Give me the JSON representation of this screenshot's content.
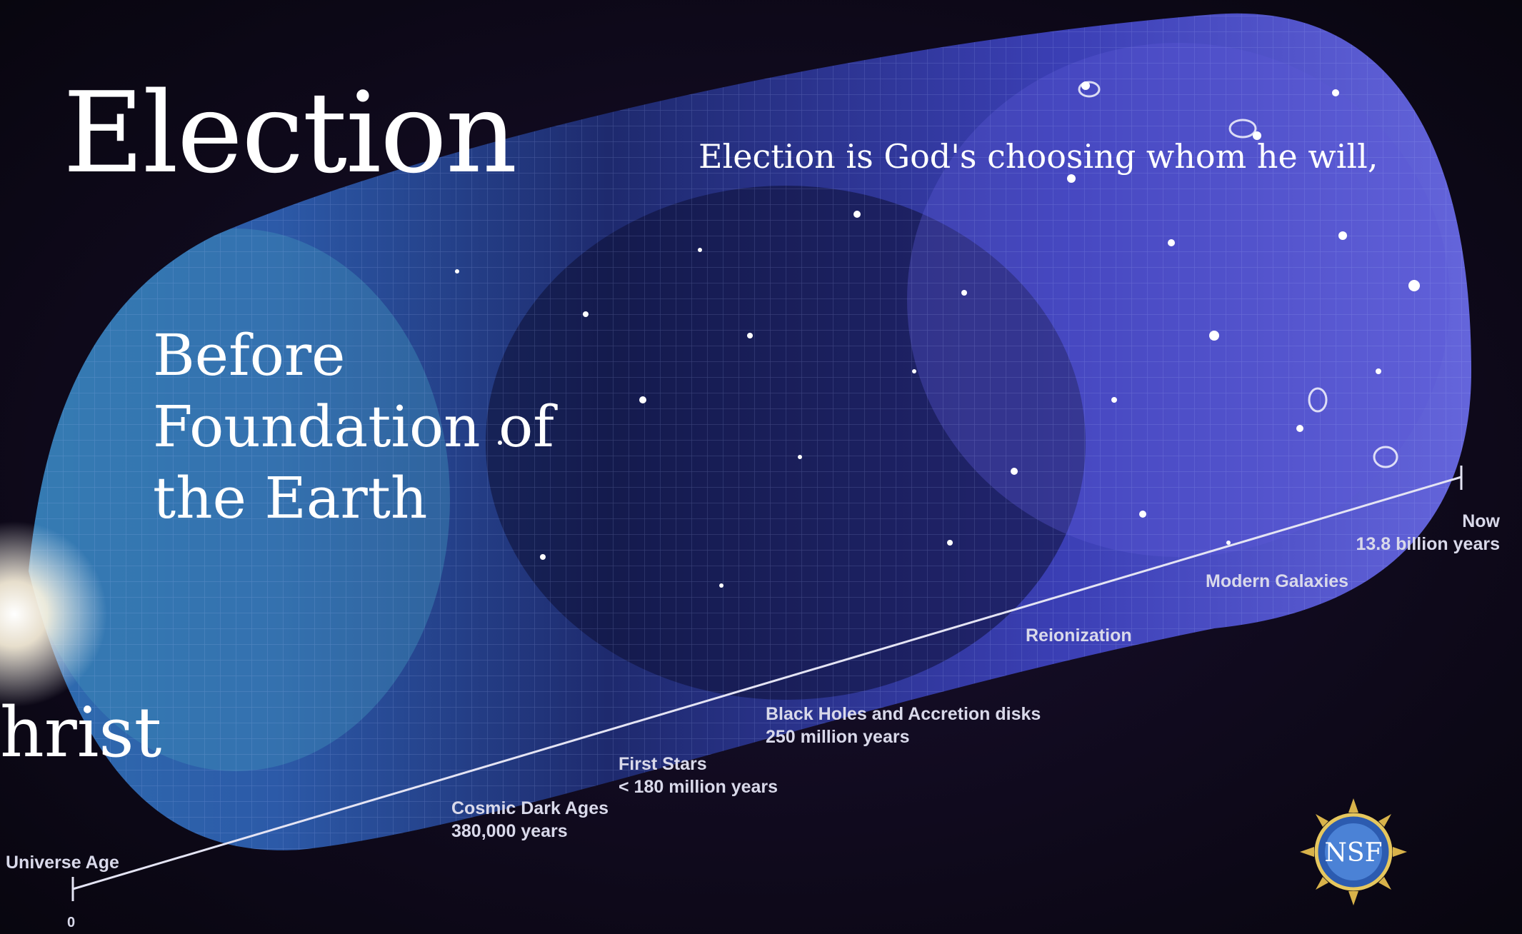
{
  "slide": {
    "title": "Election",
    "subtitle": "Election is God's choosing whom he will,",
    "point_lines": [
      "Before",
      "Foundation of",
      "the Earth"
    ],
    "fragment": "hrist"
  },
  "timeline": {
    "axis_label": "Universe Age",
    "start": "0",
    "now": "Now",
    "now_age": "13.8 billion years",
    "modern_galaxies": "Modern Galaxies",
    "reionization": "Reionization",
    "black_holes": "Black Holes and Accretion disks",
    "black_holes_age": "250 million years",
    "first_stars": "First Stars",
    "first_stars_age": "< 180 million years",
    "dark_ages": "Cosmic Dark Ages",
    "dark_ages_age": "380,000 years"
  },
  "logo": {
    "text": "NSF"
  },
  "colors": {
    "background": "#0b0712",
    "accent": "#5566ff"
  }
}
